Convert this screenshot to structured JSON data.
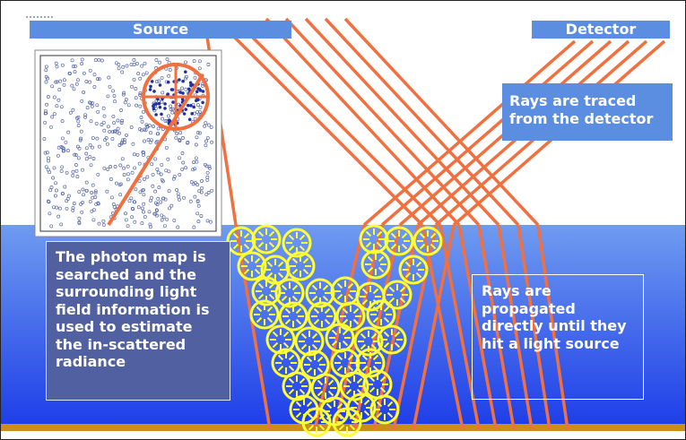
{
  "header": {
    "source_label": "Source",
    "detector_label": "Detector"
  },
  "captions": {
    "detector_note": "Rays are traced from the detector",
    "photon_map_note": "The photon map is searched and the surrounding light field information is used to estimate the in-scattered radiance",
    "propagation_note": "Rays are propagated directly until they hit a light source"
  },
  "colors": {
    "ray": "#f07040",
    "scatter_sphere": "#ffff33",
    "water_top": "#6f9bf0",
    "water_bottom": "#1f3fe8",
    "floor": "#c8901a",
    "header_bar": "#5b8de0",
    "photon_box_bg": "#5060a0",
    "photon_dot": "#2030a0"
  },
  "icons": {
    "scatter_sphere": "circle-with-inward-arrows-icon"
  }
}
